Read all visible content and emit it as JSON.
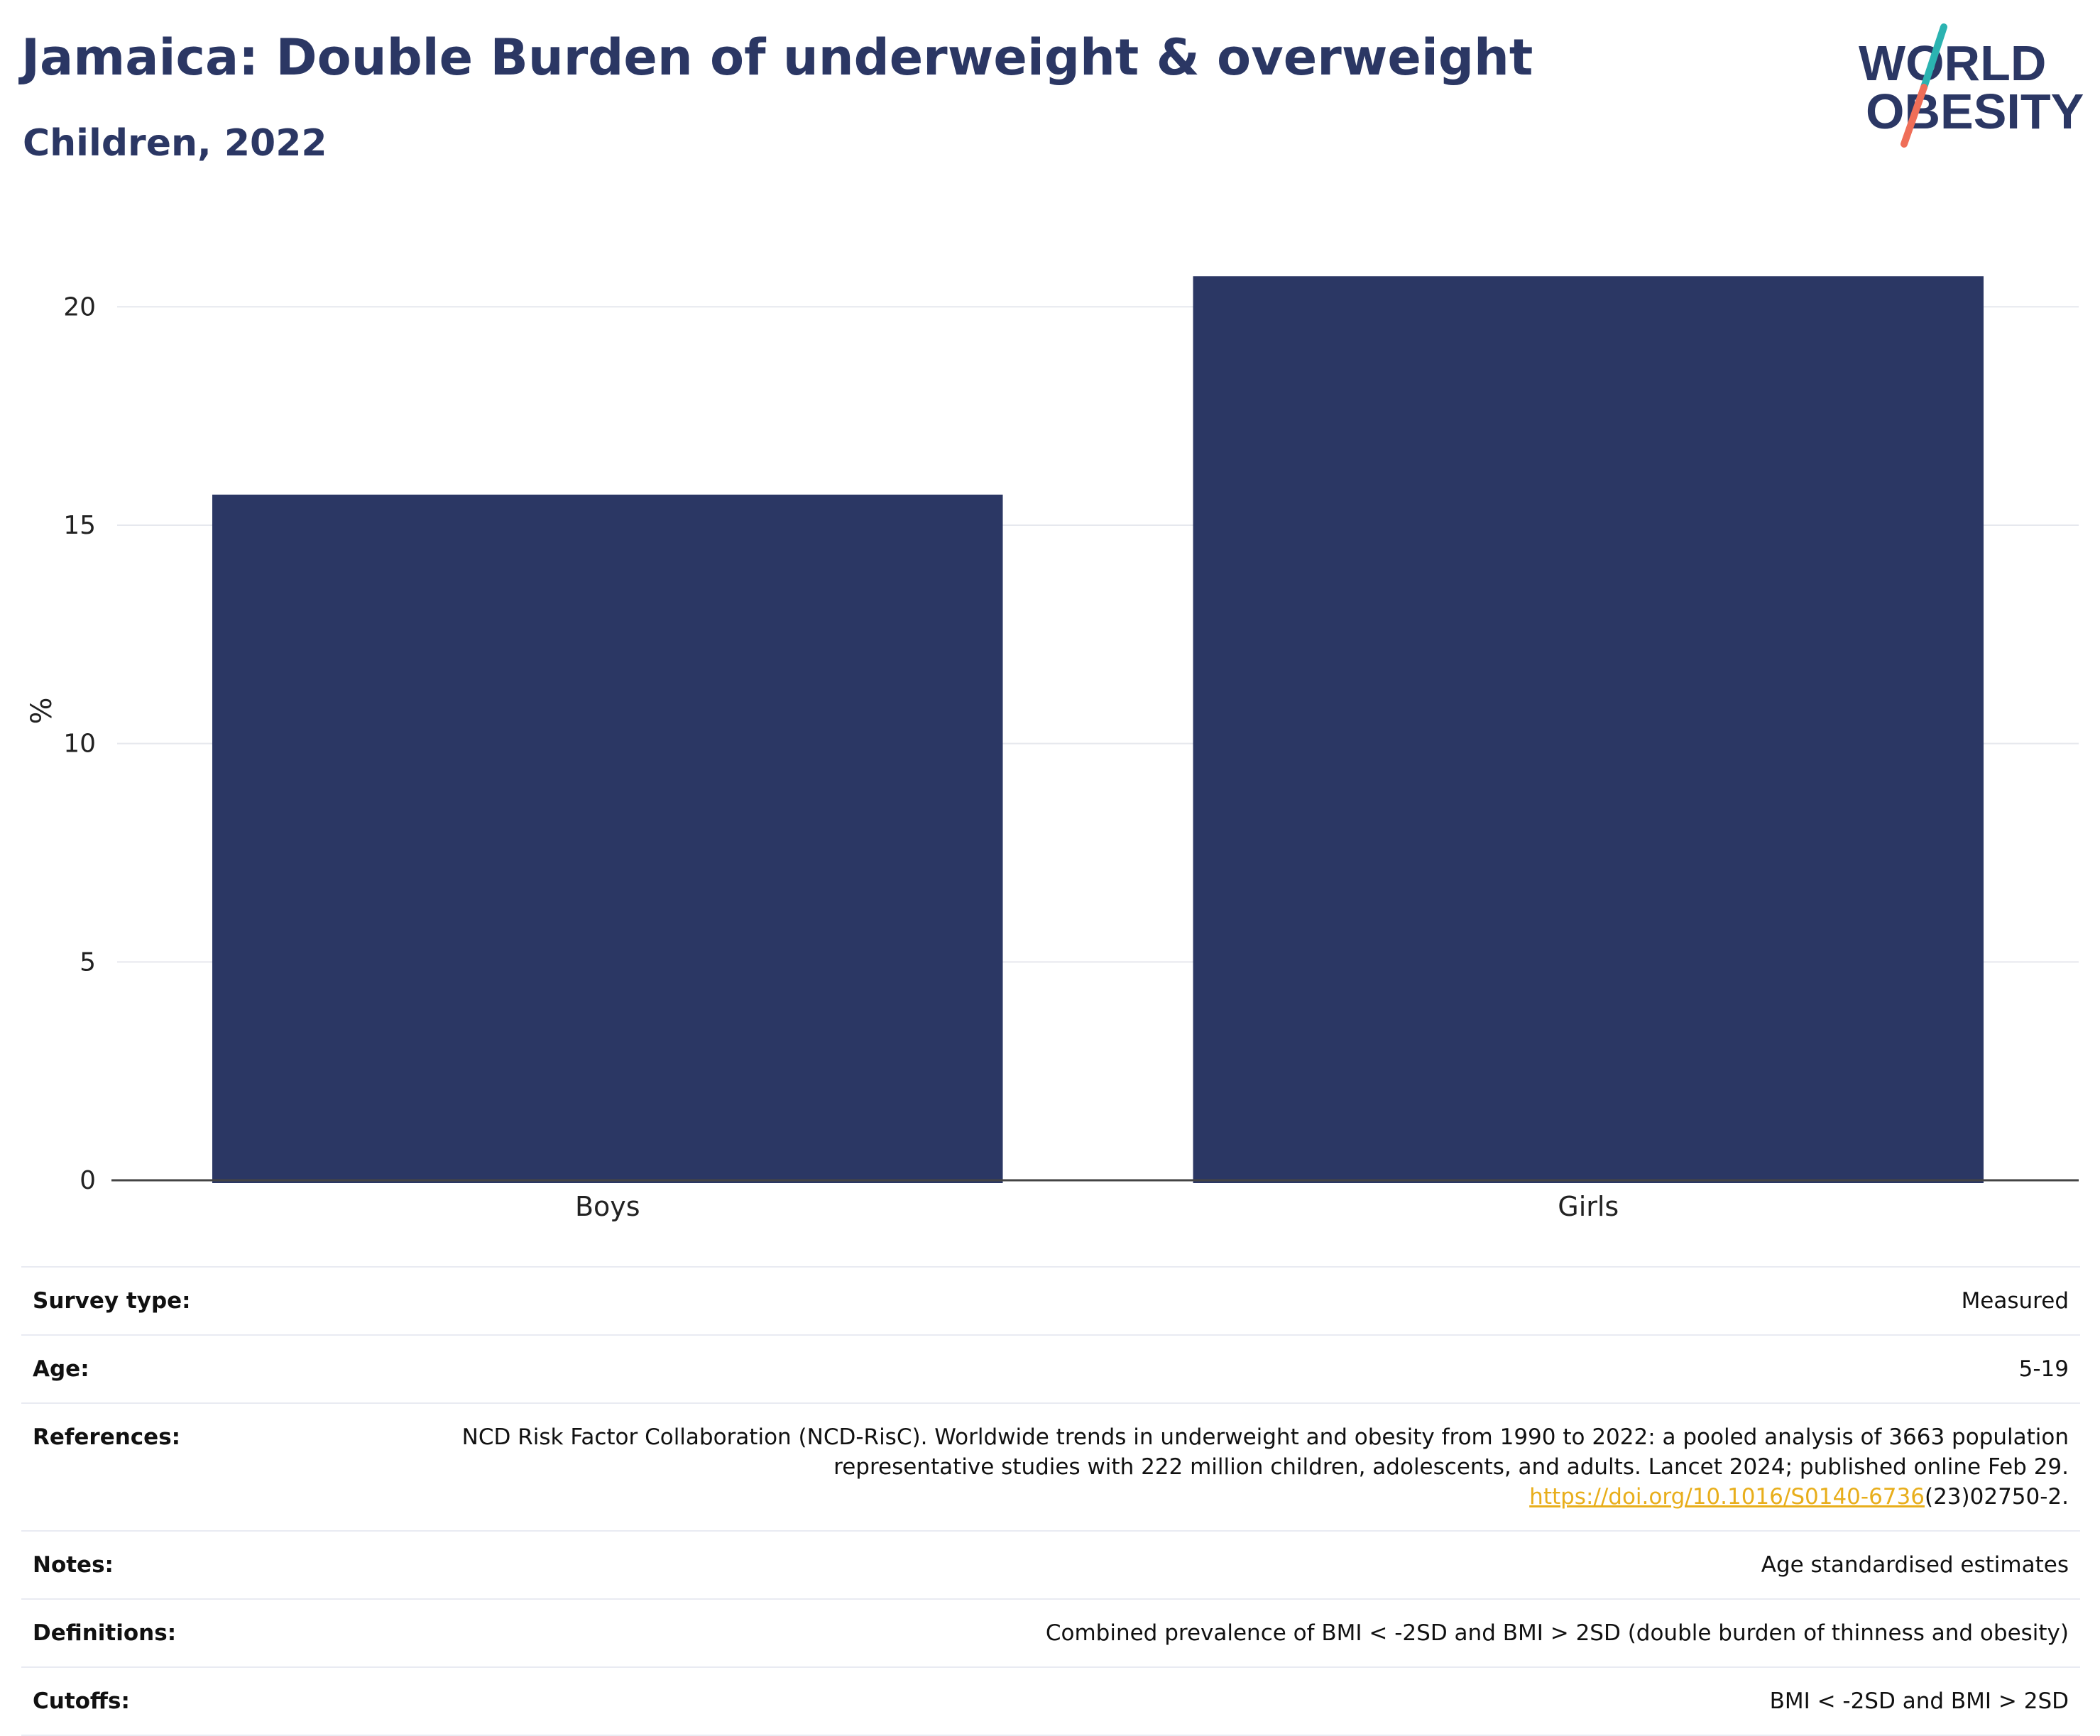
{
  "header": {
    "title": "Jamaica: Double Burden of underweight & overweight",
    "subtitle": "Children, 2022"
  },
  "logo": {
    "line1": "WORLD",
    "line2": "OBESITY",
    "colors": {
      "text": "#2b3764",
      "slash_top": "#2bb3b1",
      "slash_bottom": "#ef6e58"
    }
  },
  "chart_data": {
    "type": "bar",
    "categories": [
      "Boys",
      "Girls"
    ],
    "values": [
      15.7,
      20.7
    ],
    "title": "",
    "xlabel": "",
    "ylabel": "%",
    "ylim": [
      0,
      21.5
    ],
    "yticks": [
      0,
      5,
      10,
      15,
      20
    ],
    "grid": true,
    "bar_color": "#2b3764"
  },
  "meta": {
    "rows": [
      {
        "label": "Survey type:",
        "value": "Measured"
      },
      {
        "label": "Age:",
        "value": "5-19"
      },
      {
        "label": "References:",
        "value": "NCD Risk Factor Collaboration (NCD-RisC). Worldwide trends in underweight and obesity from 1990 to 2022: a pooled analysis of 3663 population representative studies with 222 million children, adolescents, and adults. Lancet 2024; published online Feb 29.",
        "link": "https://doi.org/10.1016/S0140-6736",
        "link_suffix": "(23)02750-2."
      },
      {
        "label": "Notes:",
        "value": "Age standardised estimates"
      },
      {
        "label": "Definitions:",
        "value": "Combined prevalence of BMI < -2SD and BMI > 2SD (double burden of thinness and obesity)"
      },
      {
        "label": "Cutoffs:",
        "value": "BMI < -2SD and BMI > 2SD"
      }
    ]
  }
}
